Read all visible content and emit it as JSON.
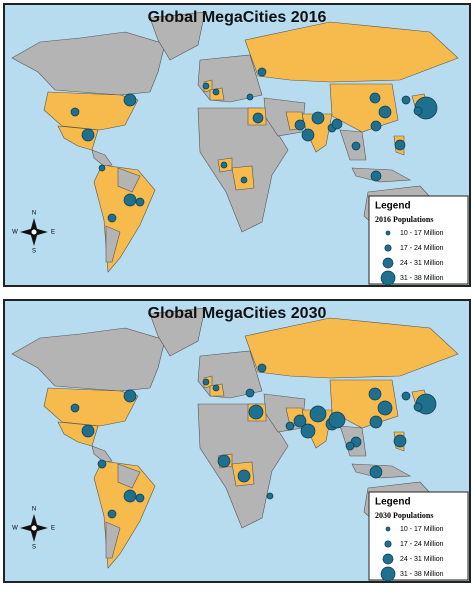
{
  "panels": [
    {
      "title": "Global MegaCities 2016",
      "legend": {
        "heading": "Legend",
        "subheading": "2016 Populations",
        "items": [
          "10 - 17 Million",
          "17 - 24 Million",
          "24 - 31 Million",
          "31 - 38 Million"
        ]
      },
      "compass": {
        "n": "N",
        "s": "S",
        "e": "E",
        "w": "W"
      }
    },
    {
      "title": "Global MegaCities 2030",
      "legend": {
        "heading": "Legend",
        "subheading": "2030 Populations",
        "items": [
          "10 - 17 Million",
          "17 - 24 Million",
          "24 - 31 Million",
          "31 - 38 Million"
        ]
      },
      "compass": {
        "n": "N",
        "s": "S",
        "e": "E",
        "w": "W"
      }
    }
  ]
}
